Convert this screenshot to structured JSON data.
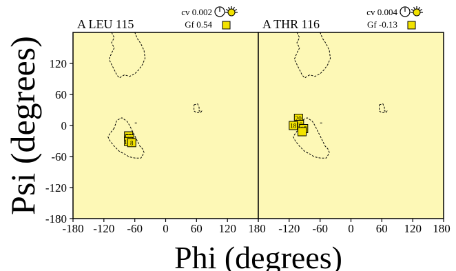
{
  "chart_data": {
    "type": "scatter",
    "axis_labels": {
      "x": "Phi (degrees)",
      "y": "Psi (degrees)"
    },
    "x_ticks": [
      "-180",
      "-120",
      "-60",
      "0",
      "60",
      "120",
      "180"
    ],
    "y_ticks": [
      "120",
      "60",
      "0",
      "-60",
      "-120",
      "-180"
    ],
    "xlim": [
      -180,
      180
    ],
    "ylim": [
      -180,
      180
    ],
    "background_color": "#fdf8b6",
    "marker_color": "#f2e200",
    "panels": [
      {
        "title": "A LEU 115",
        "cv_label": "cv 0.002",
        "gf_label": "Gf  0.54",
        "cv_icon": "clock-icon",
        "gf_icon": "square-icon",
        "contours": [
          [
            [
              -105,
              180
            ],
            [
              -100,
              170
            ],
            [
              -105,
              160
            ],
            [
              -100,
              150
            ],
            [
              -105,
              140
            ],
            [
              -110,
              128
            ],
            [
              -105,
              118
            ],
            [
              -100,
              108
            ],
            [
              -95,
              98
            ],
            [
              -90,
              92
            ],
            [
              -80,
              98
            ],
            [
              -70,
              95
            ],
            [
              -60,
              100
            ],
            [
              -52,
              108
            ],
            [
              -45,
              118
            ],
            [
              -40,
              130
            ],
            [
              -42,
              145
            ],
            [
              -48,
              158
            ],
            [
              -55,
              168
            ],
            [
              -60,
              180
            ]
          ],
          [
            [
              -75,
              -22
            ],
            [
              -80,
              -20
            ],
            [
              -80,
              -35
            ]
          ],
          [
            [
              -60,
              5
            ],
            [
              -55,
              5
            ]
          ],
          [
            [
              -100,
              -5
            ],
            [
              -108,
              -15
            ],
            [
              -112,
              -22
            ],
            [
              -108,
              -30
            ],
            [
              -100,
              -40
            ],
            [
              -90,
              -50
            ],
            [
              -80,
              -55
            ],
            [
              -72,
              -60
            ],
            [
              -65,
              -62
            ],
            [
              -58,
              -63
            ],
            [
              -48,
              -63
            ],
            [
              -45,
              -58
            ],
            [
              -42,
              -52
            ],
            [
              -45,
              -45
            ],
            [
              -50,
              -40
            ],
            [
              -55,
              -30
            ],
            [
              -60,
              -20
            ],
            [
              -65,
              -10
            ],
            [
              -70,
              0
            ],
            [
              -75,
              8
            ],
            [
              -85,
              15
            ],
            [
              -95,
              10
            ],
            [
              -100,
              -5
            ]
          ],
          [
            [
              55,
              40
            ],
            [
              62,
              42
            ],
            [
              65,
              35
            ],
            [
              65,
              28
            ],
            [
              70,
              28
            ],
            [
              68,
              25
            ],
            [
              60,
              25
            ],
            [
              55,
              28
            ],
            [
              55,
              40
            ]
          ]
        ],
        "points": [
          {
            "label": "20",
            "phi": -72,
            "psi": -20
          },
          {
            "label": "19",
            "phi": -70,
            "psi": -26
          },
          {
            "label": "120",
            "phi": -72,
            "psi": -31
          },
          {
            "label": "8",
            "phi": -66,
            "psi": -33
          }
        ]
      },
      {
        "title": "A THR 116",
        "cv_label": "cv 0.004",
        "gf_label": "Gf -0.13",
        "cv_icon": "clock-icon",
        "gf_icon": "square-icon",
        "contours": [
          [
            [
              -105,
              180
            ],
            [
              -100,
              170
            ],
            [
              -105,
              160
            ],
            [
              -100,
              150
            ],
            [
              -105,
              140
            ],
            [
              -110,
              128
            ],
            [
              -105,
              118
            ],
            [
              -100,
              108
            ],
            [
              -95,
              98
            ],
            [
              -90,
              92
            ],
            [
              -80,
              98
            ],
            [
              -70,
              95
            ],
            [
              -60,
              100
            ],
            [
              -52,
              108
            ],
            [
              -45,
              118
            ],
            [
              -40,
              130
            ],
            [
              -42,
              145
            ],
            [
              -48,
              158
            ],
            [
              -55,
              168
            ],
            [
              -60,
              180
            ]
          ],
          [
            [
              -60,
              5
            ],
            [
              -55,
              5
            ]
          ],
          [
            [
              -100,
              -5
            ],
            [
              -108,
              -15
            ],
            [
              -112,
              -22
            ],
            [
              -108,
              -30
            ],
            [
              -100,
              -40
            ],
            [
              -90,
              -50
            ],
            [
              -80,
              -55
            ],
            [
              -72,
              -60
            ],
            [
              -65,
              -62
            ],
            [
              -58,
              -63
            ],
            [
              -48,
              -63
            ],
            [
              -45,
              -58
            ],
            [
              -42,
              -52
            ],
            [
              -45,
              -45
            ],
            [
              -50,
              -40
            ],
            [
              -55,
              -30
            ],
            [
              -60,
              -20
            ],
            [
              -65,
              -10
            ],
            [
              -70,
              0
            ],
            [
              -75,
              8
            ],
            [
              -85,
              15
            ],
            [
              -95,
              10
            ],
            [
              -100,
              -5
            ]
          ],
          [
            [
              55,
              40
            ],
            [
              62,
              42
            ],
            [
              65,
              35
            ],
            [
              65,
              28
            ],
            [
              70,
              28
            ],
            [
              68,
              25
            ],
            [
              60,
              25
            ],
            [
              55,
              28
            ],
            [
              55,
              40
            ]
          ]
        ],
        "points": [
          {
            "label": "20",
            "phi": -102,
            "psi": 14
          },
          {
            "label": "19",
            "phi": -100,
            "psi": 2
          },
          {
            "label": "18",
            "phi": -112,
            "psi": 0
          },
          {
            "label": "17",
            "phi": -92,
            "psi": -6
          },
          {
            "label": "",
            "phi": -95,
            "psi": -12
          }
        ]
      }
    ]
  }
}
